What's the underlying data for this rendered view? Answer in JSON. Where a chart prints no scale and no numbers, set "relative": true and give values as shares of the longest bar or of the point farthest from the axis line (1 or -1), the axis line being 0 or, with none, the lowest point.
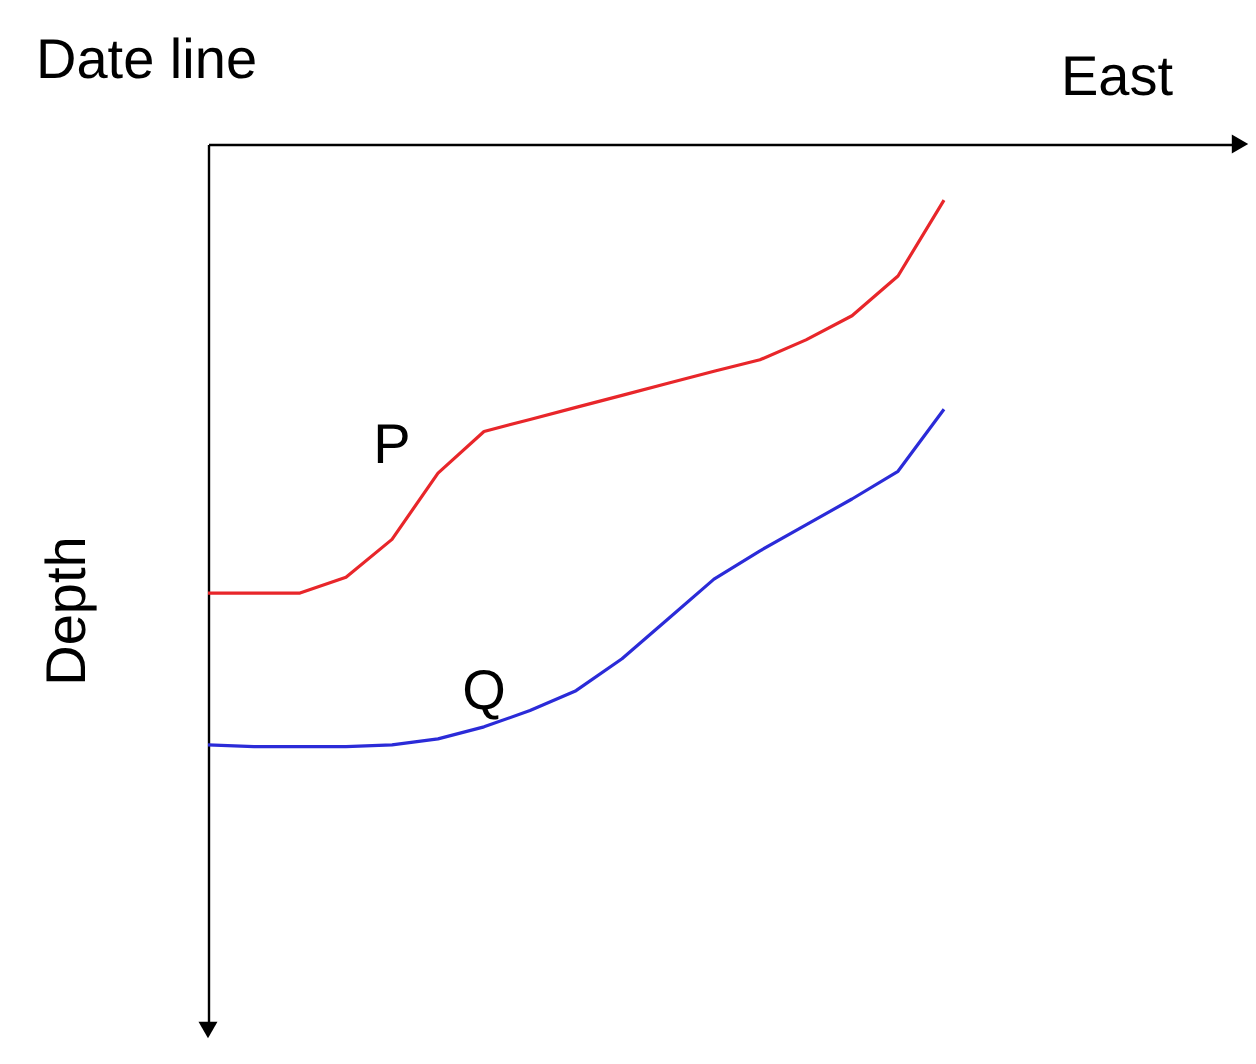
{
  "chart_data": {
    "type": "line",
    "title": "Date line",
    "xlabel": "East",
    "ylabel": "Depth",
    "relative": true,
    "categories": [
      null,
      null,
      null,
      null,
      null,
      null,
      null,
      null,
      null,
      null,
      null,
      null,
      null,
      null,
      null,
      null,
      null
    ],
    "series": [
      {
        "name": "P",
        "color": "#e8262a",
        "values": [
          -0.745,
          -0.745,
          -0.745,
          -0.719,
          -0.656,
          -0.546,
          -0.477,
          -0.457,
          -0.437,
          -0.417,
          -0.397,
          -0.377,
          -0.358,
          -0.325,
          -0.285,
          -0.219,
          -0.093
        ]
      },
      {
        "name": "Q",
        "color": "#2b2bd8",
        "values": [
          -0.997,
          -1,
          -1,
          -1,
          -0.997,
          -0.987,
          -0.967,
          -0.94,
          -0.907,
          -0.854,
          -0.788,
          -0.722,
          -0.675,
          -0.632,
          -0.589,
          -0.543,
          -0.44
        ]
      }
    ]
  }
}
